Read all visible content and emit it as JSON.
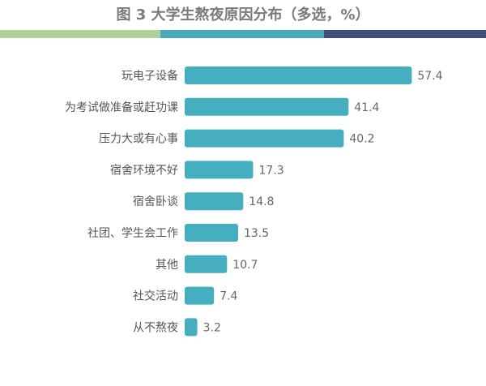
{
  "chart_data": {
    "type": "bar",
    "orientation": "horizontal",
    "title": "图 3  大学生熬夜原因分布（多选，%）",
    "categories": [
      "玩电子设备",
      "为考试做准备或赶功课",
      "压力大或有心事",
      "宿舍环境不好",
      "宿舍卧谈",
      "社团、学生会工作",
      "其他",
      "社交活动",
      "从不熬夜"
    ],
    "values": [
      57.4,
      41.4,
      40.2,
      17.3,
      14.8,
      13.5,
      10.7,
      7.4,
      3.2
    ],
    "xlim": [
      0,
      70
    ],
    "grid": false,
    "legend": "none",
    "colors": {
      "bar": "#45aebf",
      "title_text": "#7a7a7a",
      "label_text": "#555555",
      "stripe_light": "#aed39a",
      "stripe_mid": "#4aa9bb",
      "stripe_dark": "#3e4f7c"
    }
  }
}
